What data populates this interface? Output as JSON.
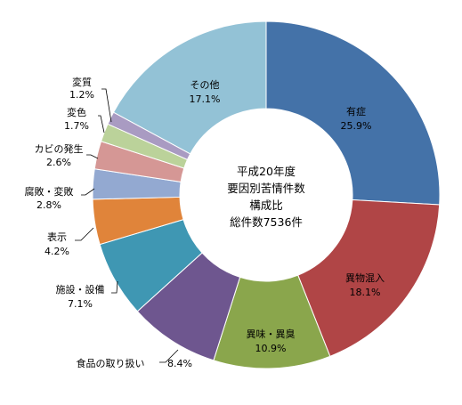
{
  "chart_data": {
    "type": "pie",
    "donut": true,
    "center_text": [
      "平成20年度",
      "要因別苦情件数",
      "構成比",
      "総件数7536件"
    ],
    "slices": [
      {
        "name": "有症",
        "value": 25.9,
        "label": "25.9%",
        "color": "#4472a8"
      },
      {
        "name": "異物混入",
        "value": 18.1,
        "label": "18.1%",
        "color": "#b04546"
      },
      {
        "name": "異味・異臭",
        "value": 10.9,
        "label": "10.9%",
        "color": "#8aa64c"
      },
      {
        "name": "食品の取り扱い",
        "value": 8.4,
        "label": "8.4%",
        "color": "#6e568f"
      },
      {
        "name": "施設・設備",
        "value": 7.1,
        "label": "7.1%",
        "color": "#3f97b3"
      },
      {
        "name": "表示",
        "value": 4.2,
        "label": "4.2%",
        "color": "#e0843a"
      },
      {
        "name": "腐敗・変敗",
        "value": 2.8,
        "label": "2.8%",
        "color": "#93a9d1"
      },
      {
        "name": "カビの発生",
        "value": 2.6,
        "label": "2.6%",
        "color": "#d59795"
      },
      {
        "name": "変色",
        "value": 1.7,
        "label": "1.7%",
        "color": "#bbd29a"
      },
      {
        "name": "変質",
        "value": 1.2,
        "label": "1.2%",
        "color": "#a99bc2"
      },
      {
        "name": "その他",
        "value": 17.1,
        "label": "17.1%",
        "color": "#93c2d6"
      }
    ]
  }
}
